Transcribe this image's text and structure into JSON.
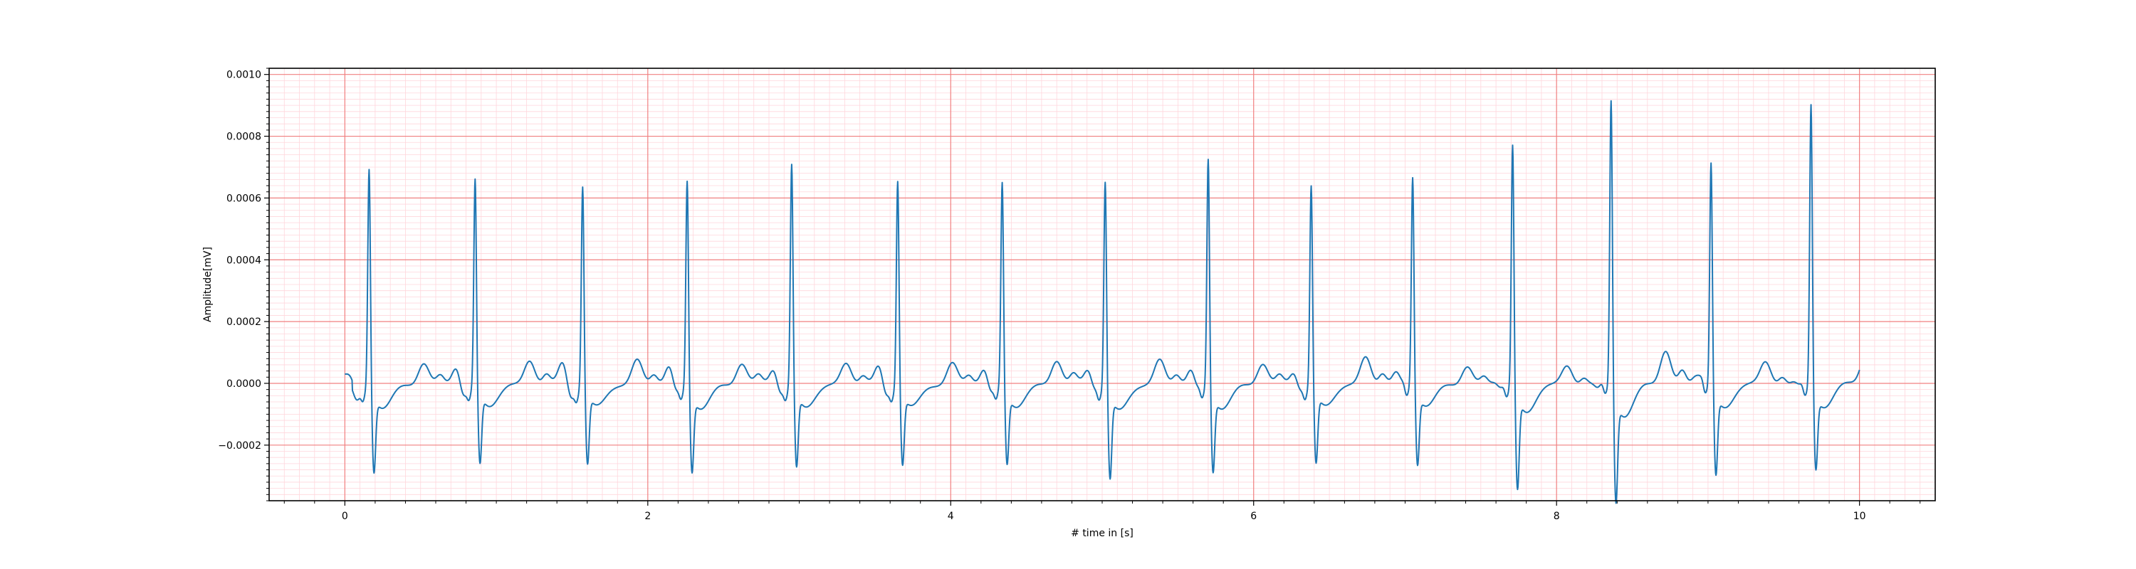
{
  "chart_data": {
    "type": "line",
    "title": "",
    "xlabel": "# time in [s]",
    "ylabel": "Amplitude[mV]",
    "xlim": [
      -0.5,
      10.5
    ],
    "ylim": [
      -0.00038,
      0.00102
    ],
    "xticks": [
      0,
      2,
      4,
      6,
      8,
      10
    ],
    "xtick_labels": [
      "0",
      "2",
      "4",
      "6",
      "8",
      "10"
    ],
    "yticks": [
      -0.0002,
      0.0,
      0.0002,
      0.0004,
      0.0006,
      0.0008,
      0.001
    ],
    "ytick_labels": [
      "−0.0002",
      "0.0000",
      "0.0002",
      "0.0004",
      "0.0006",
      "0.0008",
      "0.0010"
    ],
    "grid": {
      "major": true,
      "minor": true,
      "major_color": "#f08080",
      "minor_color": "#ffd6dc"
    },
    "line_color": "#1f77b4",
    "x_start": 0.0,
    "x_end": 10.0,
    "beats": [
      {
        "t": 0.16,
        "r": 0.00072,
        "s": -0.00024,
        "t_amp": 7e-05
      },
      {
        "t": 0.86,
        "r": 0.00068,
        "s": -0.00022,
        "t_amp": 8e-05
      },
      {
        "t": 1.57,
        "r": 0.00066,
        "s": -0.00022,
        "t_amp": 8e-05
      },
      {
        "t": 2.26,
        "r": 0.00068,
        "s": -0.00024,
        "t_amp": 7e-05
      },
      {
        "t": 2.95,
        "r": 0.00073,
        "s": -0.00023,
        "t_amp": 7e-05
      },
      {
        "t": 3.65,
        "r": 0.00068,
        "s": -0.00022,
        "t_amp": 7e-05
      },
      {
        "t": 4.34,
        "r": 0.00067,
        "s": -0.00022,
        "t_amp": 8e-05
      },
      {
        "t": 5.02,
        "r": 0.00068,
        "s": -0.00026,
        "t_amp": 8e-05
      },
      {
        "t": 5.7,
        "r": 0.00075,
        "s": -0.00024,
        "t_amp": 7e-05
      },
      {
        "t": 6.38,
        "r": 0.00066,
        "s": -0.00022,
        "t_amp": 9e-05
      },
      {
        "t": 7.05,
        "r": 0.00069,
        "s": -0.00022,
        "t_amp": 6e-05
      },
      {
        "t": 7.71,
        "r": 0.0008,
        "s": -0.00029,
        "t_amp": 6e-05
      },
      {
        "t": 8.36,
        "r": 0.00095,
        "s": -0.00032,
        "t_amp": 0.00011
      },
      {
        "t": 9.02,
        "r": 0.00074,
        "s": -0.00025,
        "t_amp": 7e-05
      },
      {
        "t": 9.68,
        "r": 0.00093,
        "s": -0.00023,
        "t_amp": 9e-05
      }
    ]
  }
}
